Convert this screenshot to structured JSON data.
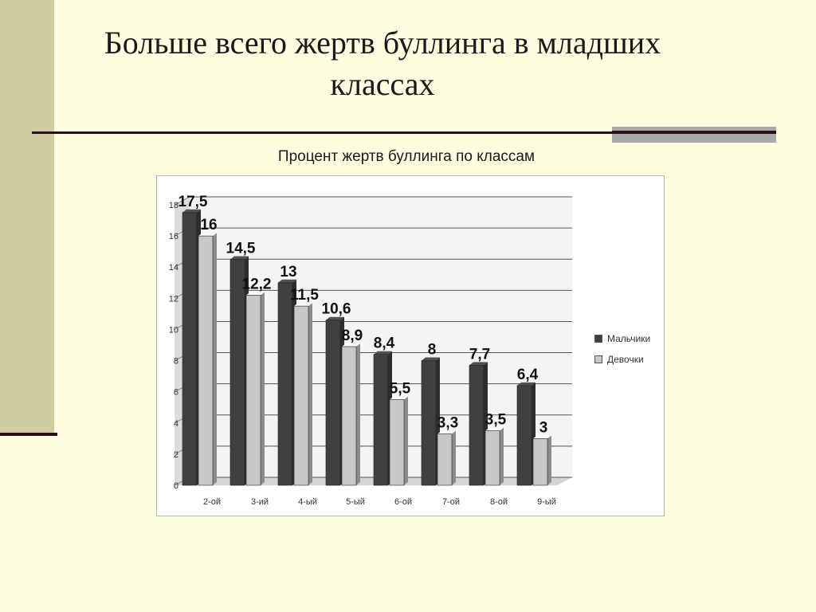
{
  "slide": {
    "title_line1": "Больше всего жертв буллинга в младших",
    "title_line2": "классах"
  },
  "colors": {
    "background": "#fefde0",
    "band": "#cfcc9f",
    "boys": "#404040",
    "girls": "#c8c8c8"
  },
  "chart_data": {
    "type": "bar",
    "title": "Процент жертв буллинга по классам",
    "categories": [
      "2-ой",
      "3-ий",
      "4-ый",
      "5-ый",
      "6-ой",
      "7-ой",
      "8-ой",
      "9-ый"
    ],
    "series": [
      {
        "name": "Мальчики",
        "values": [
          17.5,
          14.5,
          13,
          10.6,
          8.4,
          8,
          7.7,
          6.4
        ],
        "labels": [
          "17,5",
          "14,5",
          "13",
          "10,6",
          "8,4",
          "8",
          "7,7",
          "6,4"
        ]
      },
      {
        "name": "Девочки",
        "values": [
          16,
          12.2,
          11.5,
          8.9,
          5.5,
          3.3,
          3.5,
          3
        ],
        "labels": [
          "16",
          "12,2",
          "11,5",
          "8,9",
          "5,5",
          "3,3",
          "3,5",
          "3"
        ]
      }
    ],
    "ylim": [
      0,
      18
    ],
    "yticks": [
      0,
      2,
      4,
      6,
      8,
      10,
      12,
      14,
      16,
      18
    ],
    "grid": true,
    "legend": "right",
    "style": "3d-column"
  }
}
